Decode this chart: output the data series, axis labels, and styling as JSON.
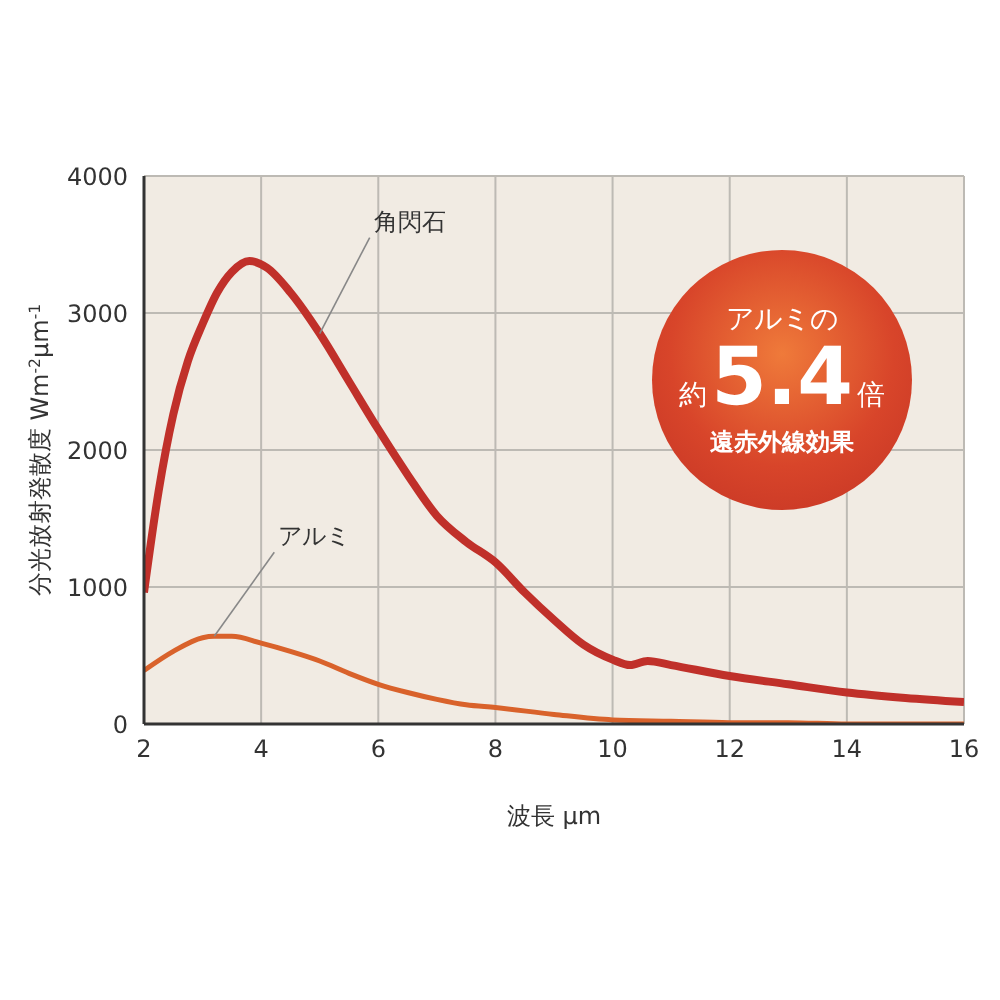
{
  "chart_data": {
    "type": "line",
    "xlabel": "波長 μm",
    "ylabel": "分光放射発散度 Wm$^{-2}$μm$^{-1}$",
    "xlim": [
      2,
      16
    ],
    "xticks": [
      2,
      4,
      6,
      8,
      10,
      12,
      14,
      16
    ],
    "ylim": [
      0,
      4000
    ],
    "yticks": [
      0,
      1000,
      2000,
      3000,
      4000
    ],
    "grid": true,
    "legend": false,
    "marker": "none",
    "line_style": "solid",
    "series": [
      {
        "name": "角閃石",
        "color": "#c0302a",
        "x": [
          2,
          2.25,
          2.5,
          2.75,
          3,
          3.25,
          3.5,
          3.8,
          4.1,
          4.5,
          5,
          5.5,
          6,
          6.5,
          7,
          7.5,
          8,
          8.5,
          9,
          9.5,
          10,
          10.3,
          10.6,
          11,
          12,
          13,
          14,
          15,
          16
        ],
        "values": [
          960,
          1700,
          2260,
          2650,
          2920,
          3150,
          3300,
          3380,
          3330,
          3150,
          2850,
          2500,
          2150,
          1820,
          1520,
          1330,
          1180,
          960,
          760,
          580,
          470,
          430,
          460,
          430,
          350,
          290,
          230,
          190,
          160
        ]
      },
      {
        "name": "アルミ",
        "color": "#d9622b",
        "x": [
          2,
          2.5,
          3,
          3.2,
          3.5,
          4,
          4.5,
          5,
          5.5,
          6,
          6.5,
          7,
          7.5,
          8,
          9,
          10,
          11,
          12,
          13,
          14,
          15,
          16
        ],
        "values": [
          390,
          530,
          630,
          640,
          640,
          590,
          530,
          460,
          370,
          290,
          230,
          180,
          140,
          120,
          70,
          30,
          20,
          10,
          10,
          0,
          0,
          0
        ]
      }
    ],
    "annotations": [
      "アルミの",
      "約",
      "5.4",
      "倍",
      "遠赤外線効果"
    ]
  }
}
